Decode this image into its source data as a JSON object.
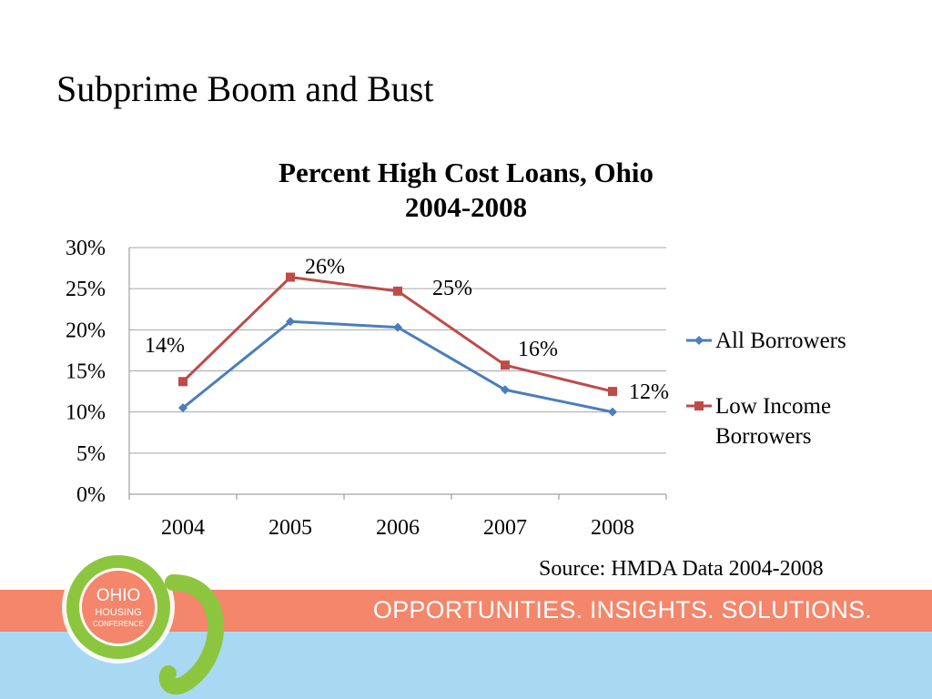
{
  "slide": {
    "title": "Subprime Boom and Bust",
    "source": "Source: HMDA Data 2004-2008",
    "tagline": "OPPORTUNITIES. INSIGHTS. SOLUTIONS.",
    "logo_lines": [
      "OHIO",
      "HOUSING",
      "CONFERENCE"
    ]
  },
  "chart_data": {
    "type": "line",
    "title_lines": [
      "Percent High Cost Loans, Ohio",
      "2004-2008"
    ],
    "categories": [
      "2004",
      "2005",
      "2006",
      "2007",
      "2008"
    ],
    "y_ticks": [
      "0%",
      "5%",
      "10%",
      "15%",
      "20%",
      "25%",
      "30%"
    ],
    "ylim": [
      0,
      30
    ],
    "grid": true,
    "legend_position": "right",
    "series": [
      {
        "name": "All Borrowers",
        "color": "#4a7ebb",
        "marker": "diamond",
        "values": [
          10.5,
          21,
          20.3,
          12.7,
          10
        ]
      },
      {
        "name": "Low Income Borrowers",
        "legend_lines": [
          "Low Income",
          "Borrowers"
        ],
        "color": "#be4b48",
        "marker": "square",
        "values": [
          13.7,
          26.4,
          24.7,
          15.7,
          12.5
        ],
        "data_labels": [
          "14%",
          "26%",
          "25%",
          "16%",
          "12%"
        ]
      }
    ]
  },
  "colors": {
    "banner": "#f3866b",
    "band": "#a9d9f2",
    "logo_green": "#8cc63f",
    "logo_orange": "#f3866b"
  }
}
